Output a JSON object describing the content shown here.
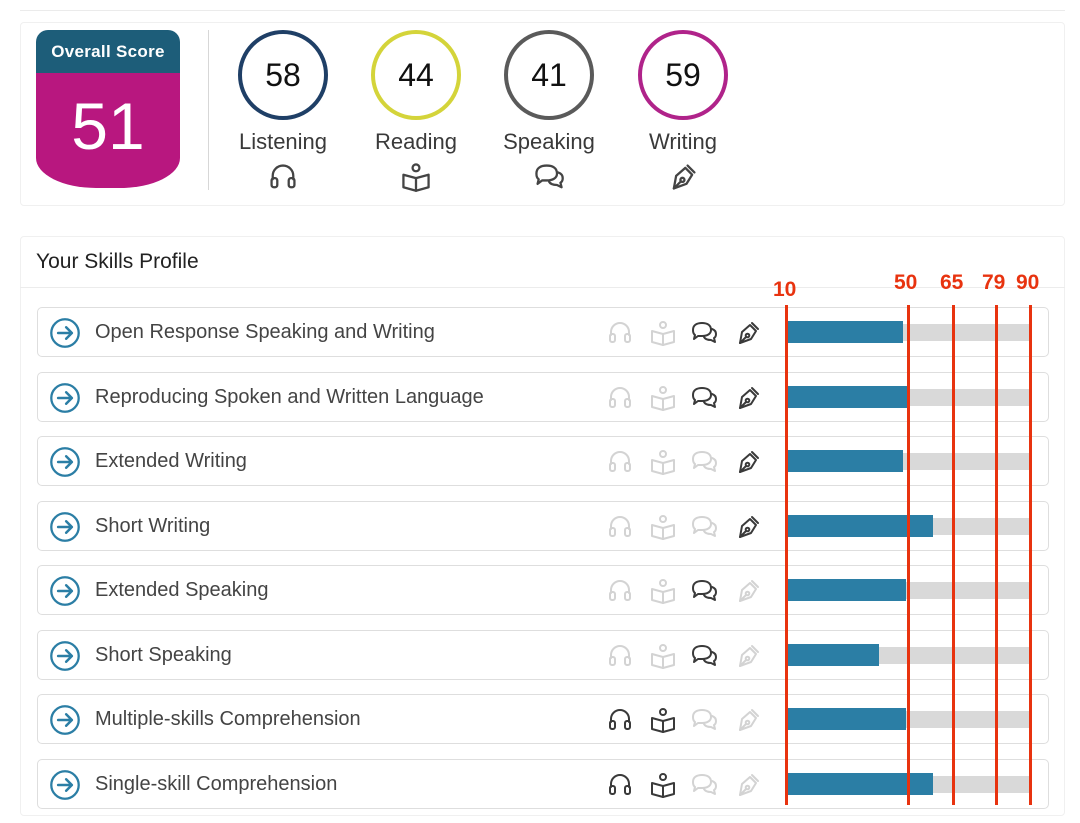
{
  "overall": {
    "title": "Overall Score",
    "score": "51"
  },
  "skills": [
    {
      "score": "58",
      "label": "Listening",
      "icon": "headphones-icon",
      "color": "#1f3f66"
    },
    {
      "score": "44",
      "label": "Reading",
      "icon": "book-reader-icon",
      "color": "#d4d43a"
    },
    {
      "score": "41",
      "label": "Speaking",
      "icon": "speech-bubbles-icon",
      "color": "#5a5a5a"
    },
    {
      "score": "59",
      "label": "Writing",
      "icon": "pen-nib-icon",
      "color": "#b0238a"
    }
  ],
  "profile": {
    "title": "Your Skills Profile",
    "scale_min": 10,
    "scale_max": 90,
    "markers": [
      "10",
      "50",
      "65",
      "79",
      "90"
    ],
    "rows": [
      {
        "name": "Open Response Speaking and Writing",
        "score": 48,
        "active": [
          false,
          false,
          true,
          true
        ]
      },
      {
        "name": "Reproducing Spoken and Written Language",
        "score": 50,
        "active": [
          false,
          false,
          true,
          true
        ]
      },
      {
        "name": "Extended Writing",
        "score": 48,
        "active": [
          false,
          false,
          false,
          true
        ]
      },
      {
        "name": "Short Writing",
        "score": 58,
        "active": [
          false,
          false,
          false,
          true
        ]
      },
      {
        "name": "Extended Speaking",
        "score": 49,
        "active": [
          false,
          false,
          true,
          false
        ]
      },
      {
        "name": "Short Speaking",
        "score": 40,
        "active": [
          false,
          false,
          true,
          false
        ]
      },
      {
        "name": "Multiple-skills Comprehension",
        "score": 49,
        "active": [
          true,
          true,
          false,
          false
        ]
      },
      {
        "name": "Single-skill Comprehension",
        "score": 58,
        "active": [
          true,
          true,
          false,
          false
        ]
      }
    ]
  },
  "colors": {
    "bar_fill": "#2b7ea5",
    "bar_track": "#d9d9d9",
    "marker_line": "#e8330f",
    "overall_header": "#1d5d79",
    "overall_body": "#b8177f",
    "icon_active": "#3a3a3a",
    "icon_inactive": "#d3d3d3"
  }
}
